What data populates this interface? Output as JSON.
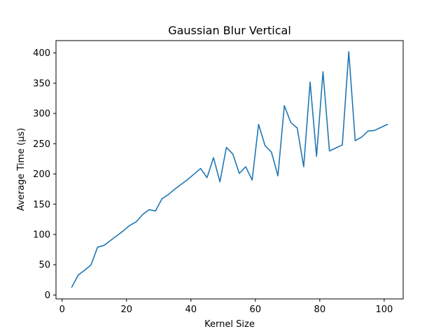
{
  "chart_data": {
    "type": "line",
    "title": "Gaussian Blur Vertical",
    "xlabel": "Kernel Size",
    "ylabel": "Average Time (µs)",
    "xlim": [
      -1.9,
      105.9
    ],
    "ylim": [
      -6.4,
      420.4
    ],
    "xticks": [
      0,
      20,
      40,
      60,
      80,
      100
    ],
    "yticks": [
      0,
      50,
      100,
      150,
      200,
      250,
      300,
      350,
      400
    ],
    "grid": false,
    "series": [
      {
        "color": "#1f77b4",
        "x": [
          3,
          5,
          7,
          9,
          11,
          13,
          15,
          17,
          19,
          21,
          23,
          25,
          27,
          29,
          31,
          33,
          35,
          37,
          39,
          41,
          43,
          45,
          47,
          49,
          51,
          53,
          55,
          57,
          59,
          61,
          63,
          65,
          67,
          69,
          71,
          73,
          75,
          77,
          79,
          81,
          83,
          85,
          87,
          89,
          91,
          93,
          95,
          97,
          99,
          101
        ],
        "y": [
          13,
          33,
          41,
          50,
          79,
          82,
          90,
          98,
          106,
          115,
          121,
          133,
          141,
          139,
          159,
          166,
          175,
          183,
          191,
          200,
          209,
          194,
          227,
          187,
          244,
          233,
          201,
          212,
          190,
          282,
          247,
          236,
          197,
          313,
          285,
          276,
          212,
          352,
          229,
          369,
          238,
          243,
          248,
          402,
          255,
          261,
          271,
          272,
          277,
          282
        ]
      }
    ]
  }
}
